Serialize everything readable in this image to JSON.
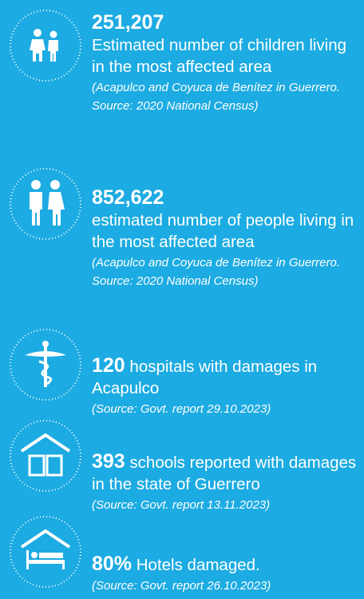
{
  "items": [
    {
      "value": "251,207",
      "text": "Estimated number of children living in the most affected area",
      "source": "(Acapulco and Coyuca de Benítez in Guerrero. Source: 2020 National Census)"
    },
    {
      "value": "852,622",
      "text": "estimated number of people living in the most affected area",
      "source": "(Acapulco and Coyuca de Benítez in Guerrero. Source: 2020 National Census)"
    },
    {
      "value": "120",
      "text": "hospitals with damages in Acapulco",
      "source": "(Source: Govt. report 29.10.2023)"
    },
    {
      "value": "393",
      "text": "schools reported with damages in the state of Guerrero",
      "source": "(Source: Govt. report 13.11.2023)"
    },
    {
      "value": "80%",
      "text": "Hotels damaged.",
      "source": "(Source: Govt. report 26.10.2023)"
    }
  ]
}
